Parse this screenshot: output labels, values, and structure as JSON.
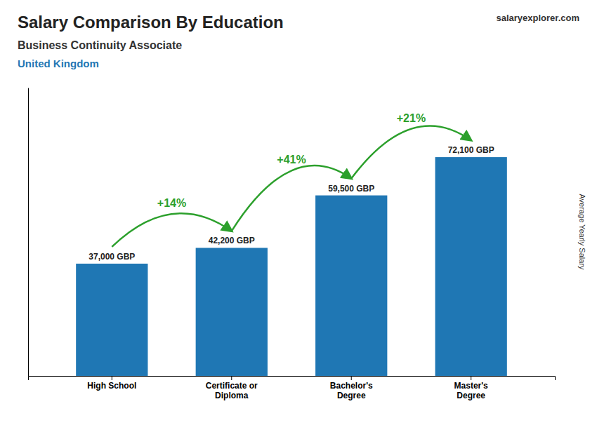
{
  "chart_data": {
    "type": "bar",
    "title": "Salary Comparison By Education",
    "subtitle": "Business Continuity Associate",
    "annotations": [
      "United Kingdom",
      "salaryexplorer.com"
    ],
    "ylabel": "Average Yearly Salary",
    "categories": [
      "High School",
      "Certificate or\nDiploma",
      "Bachelor's\nDegree",
      "Master's\nDegree"
    ],
    "values": [
      37000,
      42200,
      59500,
      72100
    ],
    "value_labels": [
      "37,000 GBP",
      "42,200 GBP",
      "59,500 GBP",
      "72,100 GBP"
    ],
    "change_labels": [
      "+14%",
      "+41%",
      "+21%"
    ],
    "data_labels": true,
    "ylim": [
      0,
      95000
    ],
    "tick_labels": "x",
    "grid": false
  }
}
